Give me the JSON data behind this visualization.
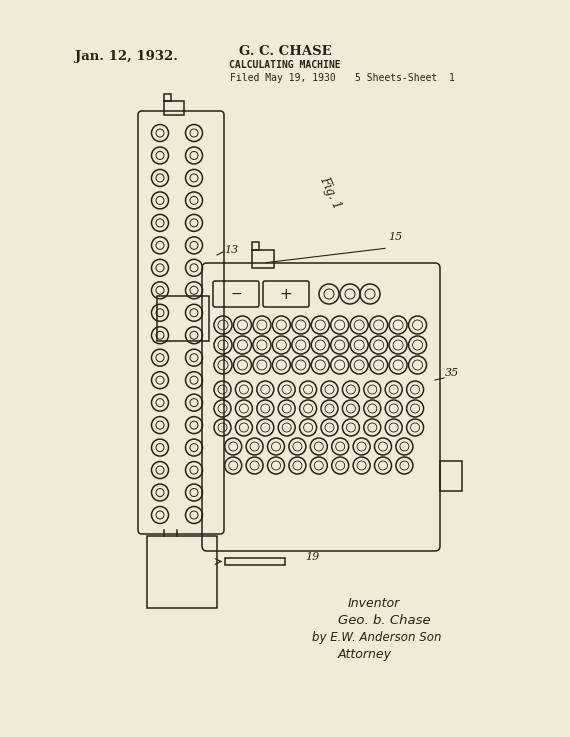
{
  "bg_color": "#f2ead8",
  "line_color": "#2a2015",
  "date_text": "Jan. 12, 1932.",
  "inventor_name": "G. C. CHASE",
  "machine_title": "CALCULATING MACHINE",
  "filed_text": "Filed May 19, 1930",
  "sheets_text": "5 Sheets-Sheet  1",
  "fig_label": "Fig. 1",
  "label_13": "13",
  "label_15": "15",
  "label_35": "35",
  "label_19": "19",
  "figsize": [
    5.7,
    7.37
  ],
  "dpi": 100
}
